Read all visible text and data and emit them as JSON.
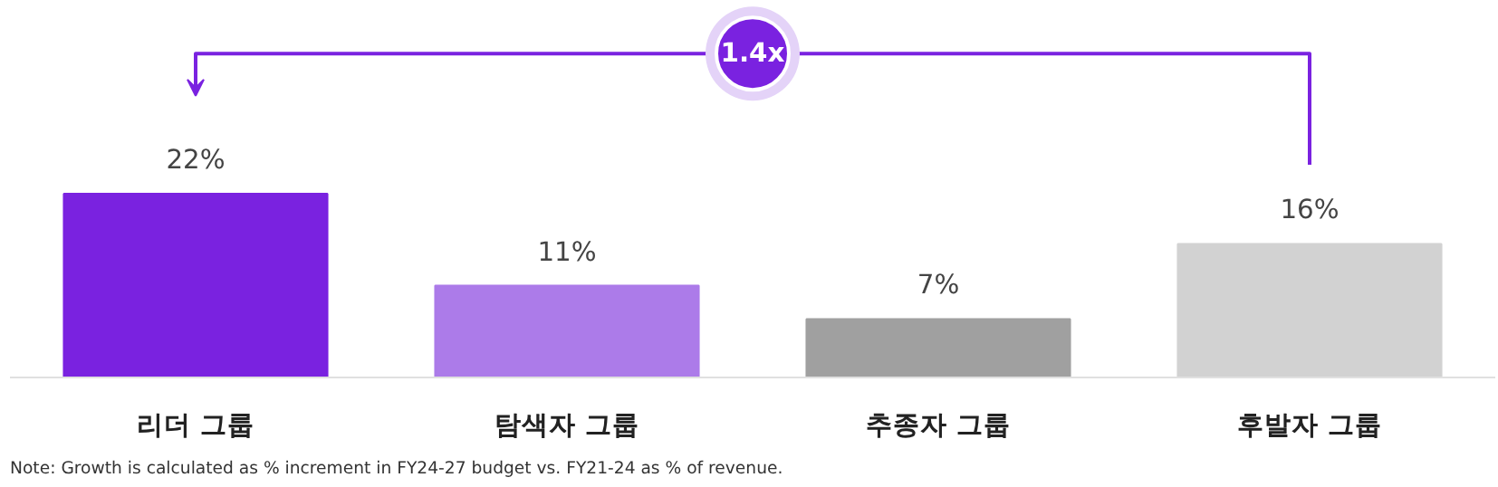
{
  "chart_data": {
    "type": "bar",
    "categories": [
      "리더 그룹",
      "탐색자 그룹",
      "추종자 그룹",
      "후발자 그룹"
    ],
    "values": [
      22,
      11,
      7,
      16
    ],
    "colors": [
      "#7a22e0",
      "#ac7be9",
      "#a0a0a0",
      "#d2d2d2"
    ],
    "value_labels": [
      "22%",
      "11%",
      "7%",
      "16%"
    ],
    "tick_labels": "x",
    "grid": false,
    "annotations": [
      "1.4x",
      "Note: Growth is calculated as % increment in FY24-27 budget vs. FY21-24 as % of revenue."
    ]
  }
}
